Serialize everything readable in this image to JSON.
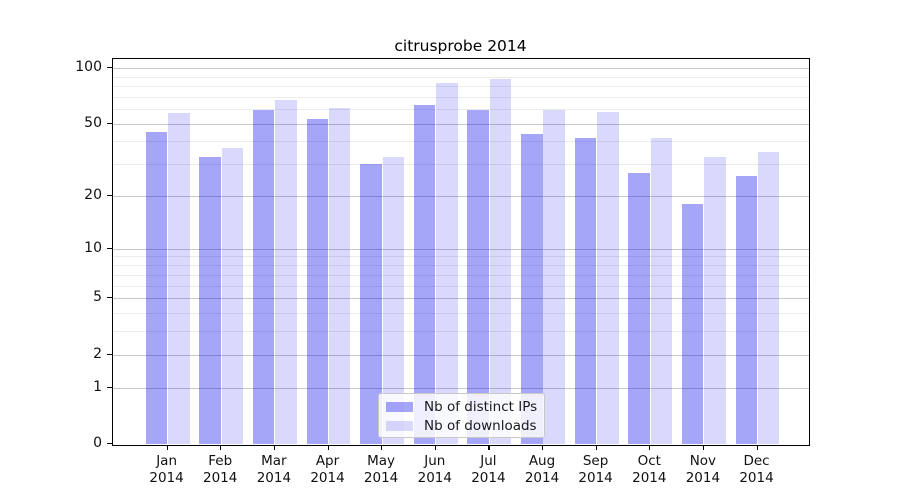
{
  "title": "citrusprobe 2014",
  "chart_data": {
    "type": "bar",
    "categories": [
      "Jan",
      "Feb",
      "Mar",
      "Apr",
      "May",
      "Jun",
      "Jul",
      "Aug",
      "Sep",
      "Oct",
      "Nov",
      "Dec"
    ],
    "category_year_label": "2014",
    "series": [
      {
        "name": "Nb of distinct IPs",
        "color": "rgba(0,0,238,0.35)",
        "values": [
          45,
          33,
          59,
          53,
          30,
          63,
          59,
          44,
          42,
          27,
          18,
          26
        ]
      },
      {
        "name": "Nb of downloads",
        "color": "rgba(0,0,238,0.15)",
        "values": [
          57,
          37,
          67,
          61,
          33,
          83,
          87,
          59,
          58,
          42,
          33,
          35
        ]
      }
    ],
    "yscale": "log1p",
    "ylim": [
      0,
      112
    ],
    "y_major_ticks": [
      0,
      1,
      2,
      5,
      10,
      20,
      50,
      100
    ],
    "y_minor_gridlines": [
      1,
      2,
      3,
      4,
      5,
      6,
      7,
      8,
      9,
      10,
      20,
      30,
      40,
      50,
      60,
      70,
      80,
      90,
      100
    ],
    "grid": "horizontal",
    "legend_position": "bottom-center-inside",
    "colors": {
      "accent_blue": "#0000ee",
      "grid_major": "#c9c9c9",
      "grid_minor": "#ebebeb",
      "spine": "#000000"
    }
  },
  "legend": {
    "items": [
      {
        "label": "Nb of distinct IPs"
      },
      {
        "label": "Nb of downloads"
      }
    ]
  }
}
